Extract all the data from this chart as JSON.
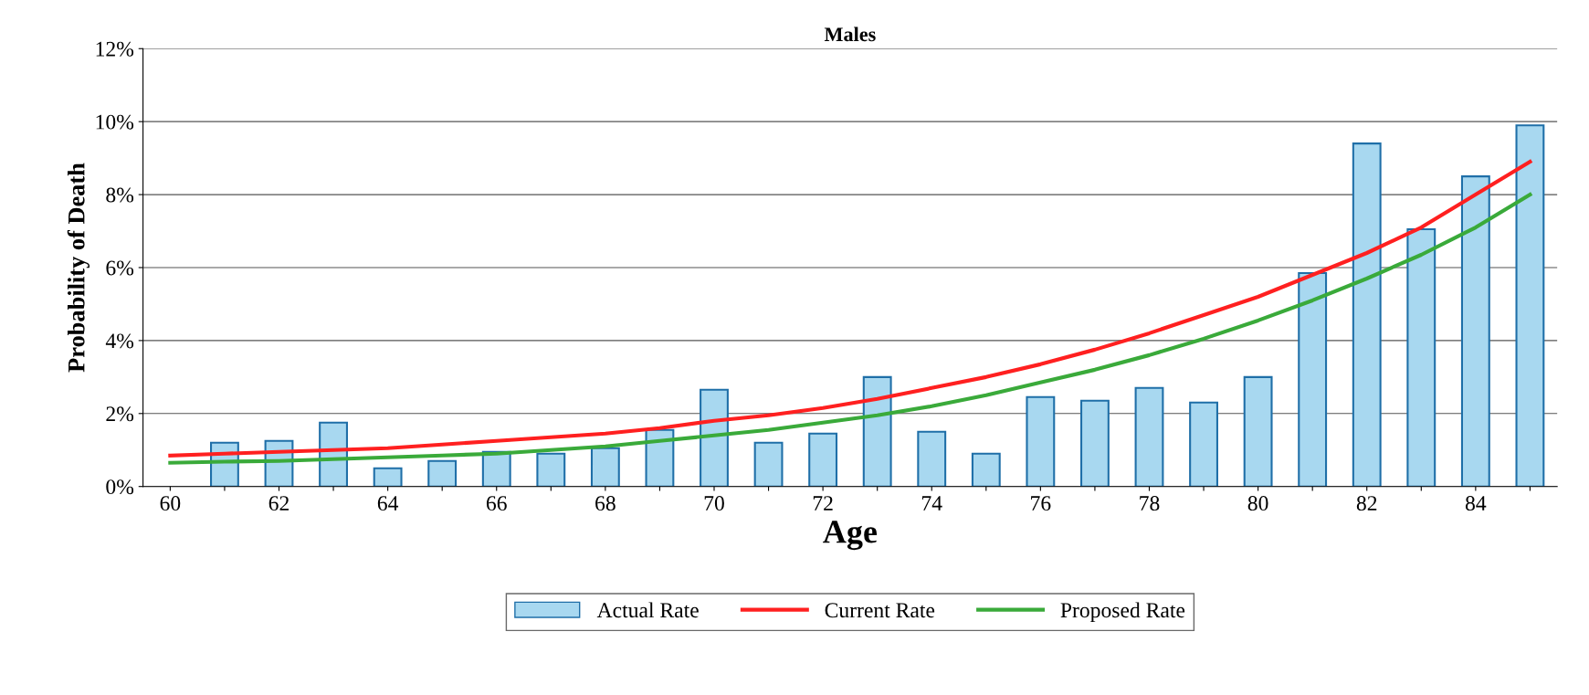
{
  "chart_data": {
    "type": "bar",
    "title": "Males",
    "xlabel": "Age",
    "ylabel": "Probability of Death",
    "categories": [
      "60",
      null,
      "62",
      null,
      "64",
      null,
      "66",
      null,
      "68",
      null,
      "70",
      null,
      "72",
      null,
      "74",
      null,
      "76",
      null,
      "78",
      null,
      "80",
      null,
      "82",
      null,
      "84",
      null
    ],
    "series": [
      {
        "name": "Actual Rate",
        "color": "#a8d8f0",
        "values": [
          null,
          1.2,
          1.25,
          1.75,
          0.5,
          0.7,
          0.95,
          0.9,
          1.05,
          1.55,
          2.65,
          1.2,
          1.45,
          3.0,
          1.5,
          0.9,
          2.45,
          2.35,
          2.7,
          2.3,
          3.0,
          5.85,
          9.4,
          7.05,
          8.5,
          9.9
        ]
      },
      {
        "name": "Current Rate",
        "type": "line",
        "color": "#ff2020",
        "values": [
          0.85,
          0.9,
          0.95,
          1.0,
          1.05,
          1.15,
          1.25,
          1.35,
          1.45,
          1.6,
          1.8,
          1.95,
          2.15,
          2.4,
          2.7,
          3.0,
          3.35,
          3.75,
          4.2,
          4.7,
          5.2,
          5.8,
          6.4,
          7.1,
          8.0,
          8.9
        ]
      },
      {
        "name": "Proposed Rate",
        "type": "line",
        "color": "#3aaa3a",
        "values": [
          0.65,
          0.68,
          0.7,
          0.75,
          0.8,
          0.85,
          0.9,
          1.0,
          1.1,
          1.25,
          1.4,
          1.55,
          1.75,
          1.95,
          2.2,
          2.5,
          2.85,
          3.2,
          3.6,
          4.05,
          4.55,
          5.1,
          5.7,
          6.35,
          7.1,
          8.0
        ]
      }
    ],
    "ylim": [
      0,
      12
    ],
    "yticks": [
      {
        "value": 0,
        "label": "0%"
      },
      {
        "value": 2,
        "label": "2%"
      },
      {
        "value": 4,
        "label": "4%"
      },
      {
        "value": 6,
        "label": "6%"
      },
      {
        "value": 8,
        "label": "8%"
      },
      {
        "value": 10,
        "label": "10%"
      },
      {
        "value": 12,
        "label": "12%"
      }
    ],
    "grid": "y",
    "legend": "bottom",
    "marker": "none",
    "line_style": "solid"
  }
}
